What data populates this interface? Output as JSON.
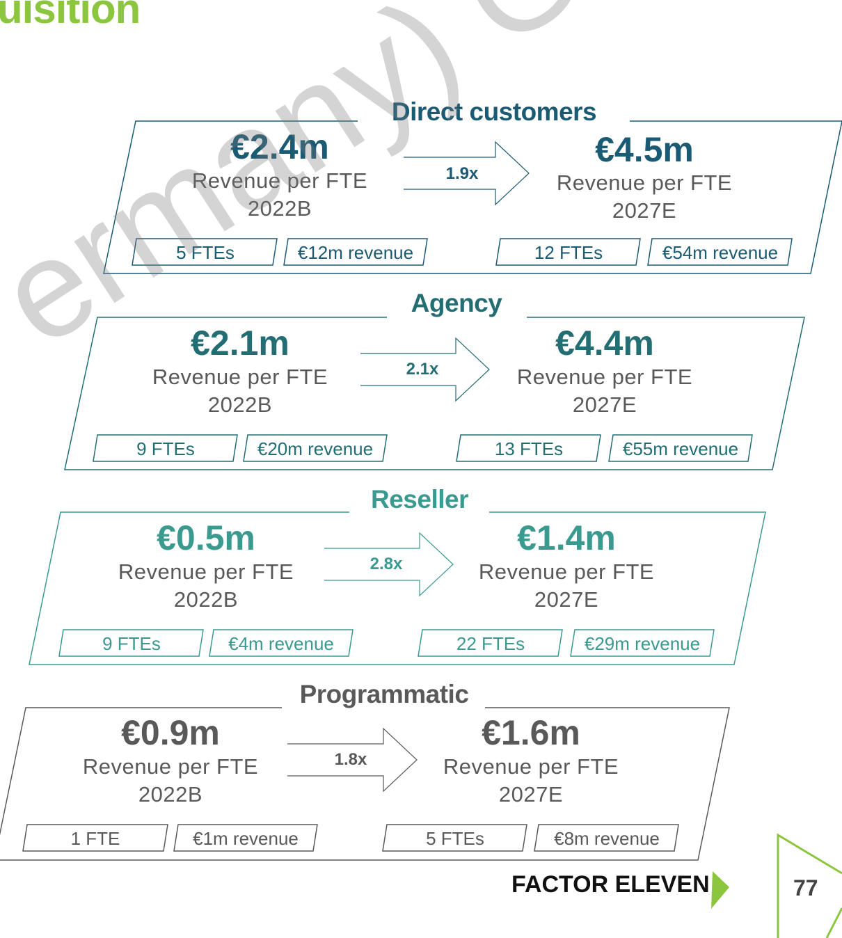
{
  "title": "uisition",
  "segments": [
    {
      "name": "Direct customers",
      "color": "#1b5a73",
      "from": {
        "value": "€2.4m",
        "label": "Revenue per FTE",
        "year": "2022B",
        "ftes": "5 FTEs",
        "revenue": "€12m revenue"
      },
      "multiplier": "1.9x",
      "to": {
        "value": "€4.5m",
        "label": "Revenue per FTE",
        "year": "2027E",
        "ftes": "12 FTEs",
        "revenue": "€54m revenue"
      }
    },
    {
      "name": "Agency",
      "color": "#236e73",
      "from": {
        "value": "€2.1m",
        "label": "Revenue per FTE",
        "year": "2022B",
        "ftes": "9 FTEs",
        "revenue": "€20m revenue"
      },
      "multiplier": "2.1x",
      "to": {
        "value": "€4.4m",
        "label": "Revenue per FTE",
        "year": "2027E",
        "ftes": "13 FTEs",
        "revenue": "€55m revenue"
      }
    },
    {
      "name": "Reseller",
      "color": "#3a9a90",
      "from": {
        "value": "€0.5m",
        "label": "Revenue per FTE",
        "year": "2022B",
        "ftes": "9 FTEs",
        "revenue": "€4m revenue"
      },
      "multiplier": "2.8x",
      "to": {
        "value": "€1.4m",
        "label": "Revenue per FTE",
        "year": "2027E",
        "ftes": "22 FTEs",
        "revenue": "€29m revenue"
      }
    },
    {
      "name": "Programmatic",
      "color": "#595959",
      "from": {
        "value": "€0.9m",
        "label": "Revenue per FTE",
        "year": "2022B",
        "ftes": "1 FTE",
        "revenue": "€1m revenue"
      },
      "multiplier": "1.8x",
      "to": {
        "value": "€1.6m",
        "label": "Revenue per FTE",
        "year": "2027E",
        "ftes": "5 FTEs",
        "revenue": "€8m revenue"
      }
    }
  ],
  "watermark": "ermany) GmbH",
  "logo_text": "FACTOR ELEVEN",
  "brand_green": "#8cc63f",
  "page_number": "77"
}
